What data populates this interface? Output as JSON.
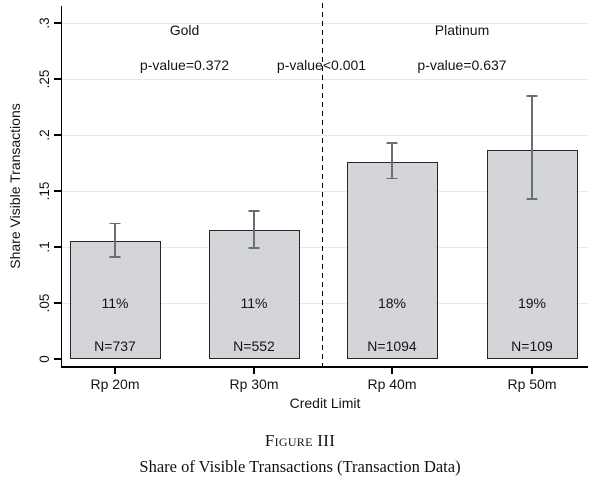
{
  "figure": {
    "caption_label": "Figure III",
    "caption_title": "Share of Visible Transactions (Transaction Data)"
  },
  "chart_data": {
    "type": "bar",
    "title": "",
    "xlabel": "Credit Limit",
    "ylabel": "Share Visible Transactions",
    "ylim": [
      0,
      0.3
    ],
    "ytick_interval": 0.05,
    "ytick_labels": [
      "0",
      ".05",
      ".1",
      ".15",
      ".2",
      ".25",
      ".3"
    ],
    "grid": true,
    "legend": "none",
    "categories": [
      "Rp 20m",
      "Rp 30m",
      "Rp 40m",
      "Rp 50m"
    ],
    "values": [
      0.105,
      0.115,
      0.176,
      0.187
    ],
    "error_low": [
      0.091,
      0.099,
      0.161,
      0.143
    ],
    "error_high": [
      0.121,
      0.132,
      0.193,
      0.235
    ],
    "bar_percent_labels": [
      "11%",
      "11%",
      "18%",
      "19%"
    ],
    "bar_n_labels": [
      "N=737",
      "N=552",
      "N=1094",
      "N=109"
    ],
    "groups": [
      {
        "label": "Gold",
        "category_indexes": [
          0,
          1
        ],
        "p_value_label": "p-value=0.372"
      },
      {
        "label": "Platinum",
        "category_indexes": [
          2,
          3
        ],
        "p_value_label": "p-value=0.637"
      }
    ],
    "between_group_p_value_label": "p-value<0.001",
    "separator": "dashed vertical line between Gold and Platinum groups",
    "colors": {
      "bar_fill": "#d3d5d8",
      "bar_border": "#262626",
      "error_bar": "#6b6f72",
      "gridline": "#e8e8e8",
      "axis": "#000000",
      "text": "#141414"
    }
  }
}
